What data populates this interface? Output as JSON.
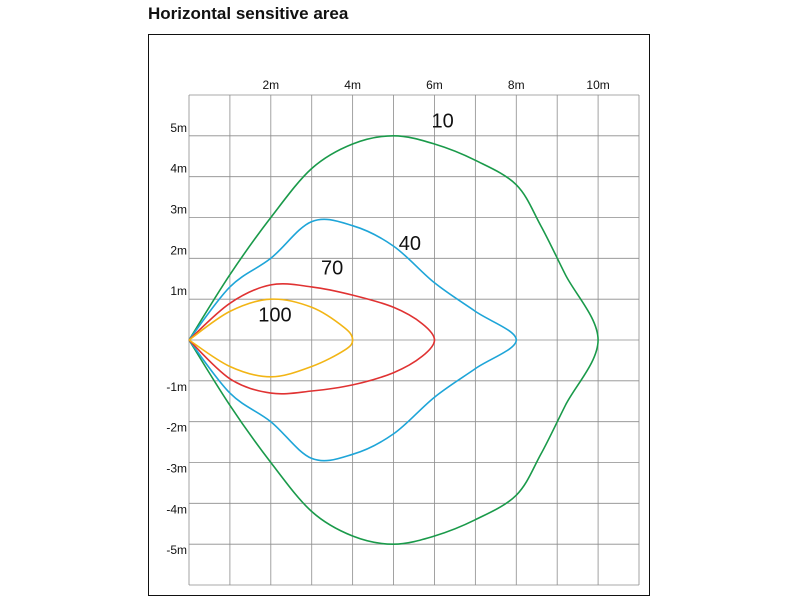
{
  "title": "Horizontal sensitive area",
  "chart_data": {
    "type": "line",
    "title": "Horizontal sensitive area",
    "xlabel": "",
    "ylabel": "",
    "xlim": [
      0,
      11
    ],
    "ylim": [
      -6,
      6
    ],
    "grid": true,
    "x_ticks": [
      {
        "value": 2,
        "label": "2m"
      },
      {
        "value": 4,
        "label": "4m"
      },
      {
        "value": 6,
        "label": "6m"
      },
      {
        "value": 8,
        "label": "8m"
      },
      {
        "value": 10,
        "label": "10m"
      }
    ],
    "y_ticks": [
      {
        "value": 5,
        "label": "5m"
      },
      {
        "value": 4,
        "label": "4m"
      },
      {
        "value": 3,
        "label": "3m"
      },
      {
        "value": 2,
        "label": "2m"
      },
      {
        "value": 1,
        "label": "1m"
      },
      {
        "value": -1,
        "label": "-1m"
      },
      {
        "value": -2,
        "label": "-2m"
      },
      {
        "value": -3,
        "label": "-3m"
      },
      {
        "value": -4,
        "label": "-4m"
      },
      {
        "value": -5,
        "label": "-5m"
      }
    ],
    "series": [
      {
        "name": "10",
        "color": "#1a9a4a",
        "label_at": [
          6.2,
          5.2
        ],
        "points": [
          [
            0,
            0
          ],
          [
            1,
            1.6
          ],
          [
            2,
            3
          ],
          [
            3,
            4.2
          ],
          [
            4,
            4.8
          ],
          [
            5,
            5
          ],
          [
            6,
            4.8
          ],
          [
            7,
            4.4
          ],
          [
            8,
            3.8
          ],
          [
            8.6,
            2.8
          ],
          [
            9.2,
            1.6
          ],
          [
            10,
            0
          ],
          [
            9.2,
            -1.6
          ],
          [
            8.6,
            -2.8
          ],
          [
            8,
            -3.8
          ],
          [
            7,
            -4.4
          ],
          [
            6,
            -4.8
          ],
          [
            5,
            -5
          ],
          [
            4,
            -4.8
          ],
          [
            3,
            -4.2
          ],
          [
            2,
            -3
          ],
          [
            1,
            -1.6
          ],
          [
            0,
            0
          ]
        ]
      },
      {
        "name": "40",
        "color": "#1ea5d8",
        "label_at": [
          5.4,
          2.2
        ],
        "points": [
          [
            0,
            0
          ],
          [
            1,
            1.3
          ],
          [
            2,
            2
          ],
          [
            3,
            2.9
          ],
          [
            4,
            2.8
          ],
          [
            5,
            2.3
          ],
          [
            6,
            1.4
          ],
          [
            7,
            0.7
          ],
          [
            8,
            0
          ],
          [
            7,
            -0.7
          ],
          [
            6,
            -1.4
          ],
          [
            5,
            -2.3
          ],
          [
            4,
            -2.8
          ],
          [
            3,
            -2.9
          ],
          [
            2,
            -2
          ],
          [
            1,
            -1.3
          ],
          [
            0,
            0
          ]
        ]
      },
      {
        "name": "70",
        "color": "#e03232",
        "label_at": [
          3.5,
          1.6
        ],
        "points": [
          [
            0,
            0
          ],
          [
            1,
            0.9
          ],
          [
            2,
            1.35
          ],
          [
            3,
            1.3
          ],
          [
            4,
            1.1
          ],
          [
            5,
            0.8
          ],
          [
            5.7,
            0.4
          ],
          [
            6,
            0
          ],
          [
            5.7,
            -0.4
          ],
          [
            5,
            -0.8
          ],
          [
            4,
            -1.1
          ],
          [
            3,
            -1.25
          ],
          [
            2,
            -1.3
          ],
          [
            1,
            -0.95
          ],
          [
            0,
            0
          ]
        ]
      },
      {
        "name": "100",
        "color": "#f2b515",
        "label_at": [
          2.1,
          0.45
        ],
        "points": [
          [
            0,
            0
          ],
          [
            1,
            0.7
          ],
          [
            2,
            1
          ],
          [
            3,
            0.8
          ],
          [
            3.8,
            0.3
          ],
          [
            4,
            0
          ],
          [
            3.8,
            -0.25
          ],
          [
            3,
            -0.65
          ],
          [
            2,
            -0.9
          ],
          [
            1,
            -0.65
          ],
          [
            0,
            0
          ]
        ]
      }
    ]
  }
}
